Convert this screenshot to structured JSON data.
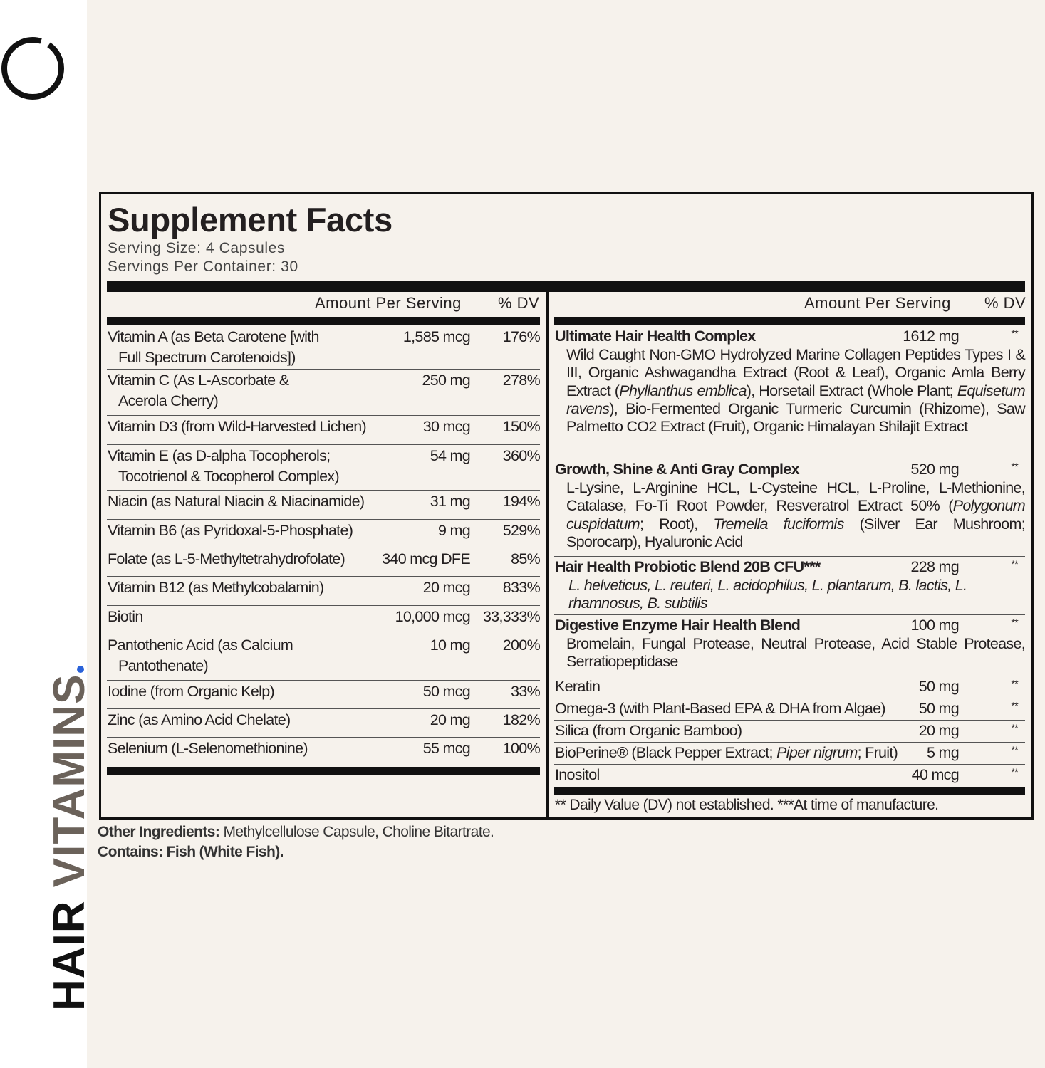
{
  "brand": {
    "word1": "HAIR",
    "word2": "VITAMINS",
    "accent_color": "#2a62d9"
  },
  "label": {
    "title": "Supplement Facts",
    "serving_size": "Serving Size: 4 Capsules",
    "servings_per_container": "Servings Per Container: 30",
    "left_header": {
      "amount": "Amount Per Serving",
      "dv": "% DV"
    },
    "right_header": {
      "amount": "Amount Per Serving",
      "dv": "% DV"
    },
    "left_rows": [
      {
        "name": "Vitamin A (as Beta Carotene [with",
        "name2": "Full Spectrum Carotenoids])",
        "amount": "1,585 mcg",
        "dv": "176%"
      },
      {
        "name": "Vitamin C (As L-Ascorbate &",
        "name2": "Acerola Cherry)",
        "amount": "250 mg",
        "dv": "278%"
      },
      {
        "name": "Vitamin D3 (from Wild-Harvested Lichen)",
        "amount": "30 mcg",
        "dv": "150%"
      },
      {
        "name": "Vitamin E (as D-alpha Tocopherols;",
        "name2": "Tocotrienol & Tocopherol Complex)",
        "amount": "54 mg",
        "dv": "360%"
      },
      {
        "name": "Niacin (as Natural Niacin & Niacinamide)",
        "amount": "31 mg",
        "dv": "194%"
      },
      {
        "name": "Vitamin B6 (as Pyridoxal-5-Phosphate)",
        "amount": "9 mg",
        "dv": "529%"
      },
      {
        "name": "Folate (as L-5-Methyltetrahydrofolate)",
        "amount": "340 mcg DFE",
        "dv": "85%"
      },
      {
        "name": "Vitamin B12 (as Methylcobalamin)",
        "amount": "20 mcg",
        "dv": "833%"
      },
      {
        "name": "Biotin",
        "amount": "10,000 mcg",
        "dv": "33,333%"
      },
      {
        "name": "Pantothenic Acid (as Calcium",
        "name2": "Pantothenate)",
        "amount": "10 mg",
        "dv": "200%"
      },
      {
        "name": "Iodine (from Organic Kelp)",
        "amount": "50 mcg",
        "dv": "33%"
      },
      {
        "name": "Zinc (as Amino Acid Chelate)",
        "amount": "20 mg",
        "dv": "182%"
      },
      {
        "name": "Selenium (L-Selenomethionine)",
        "amount": "55 mcg",
        "dv": "100%"
      }
    ],
    "right_rows": [
      {
        "name": "Ultimate Hair Health Complex",
        "bold": true,
        "amount": "1612 mg",
        "dv": "**",
        "desc": [
          {
            "t": "Wild Caught Non-GMO Hydrolyzed Marine Collagen Peptides Types I & III, Organic Ashwagandha Extract (Root & Leaf), Organic Amla Berry Extract ("
          },
          {
            "t": "Phyllanthus emblica",
            "i": true
          },
          {
            "t": "), Horsetail Extract (Whole Plant; "
          },
          {
            "t": "Equisetum ravens",
            "i": true
          },
          {
            "t": "), Bio-Fermented Organic Turmeric Curcumin (Rhizome), Saw Palmetto CO2 Extract (Fruit), Organic Himalayan Shilajit Extract"
          }
        ]
      },
      {
        "name": "Growth, Shine & Anti Gray Complex",
        "bold": true,
        "amount": "520 mg",
        "dv": "**",
        "desc": [
          {
            "t": "L-Lysine, L-Arginine HCL, L-Cysteine HCL, L-Proline, L-Methionine, Catalase, Fo-Ti Root Powder, Resveratrol Extract 50% ("
          },
          {
            "t": "Polygonum cuspidatum",
            "i": true
          },
          {
            "t": "; Root), "
          },
          {
            "t": "Tremella fuciformis",
            "i": true
          },
          {
            "t": " (Silver Ear Mushroom; Sporocarp), Hyaluronic Acid"
          }
        ]
      },
      {
        "name": "Hair Health Probiotic Blend 20B CFU***",
        "bold": true,
        "amount": "228 mg",
        "dv": "**",
        "desc": [
          {
            "t": "L. helveticus, L. reuteri, L. acidophilus, L. plantarum, B. lactis, L. rhamnosus, B. subtilis",
            "i": true
          }
        ]
      },
      {
        "name": "Digestive Enzyme Hair Health Blend",
        "bold": true,
        "amount": "100 mg",
        "dv": "**",
        "desc": [
          {
            "t": "Bromelain, Fungal Protease, Neutral Protease, Acid Stable Protease, Serratiopeptidase"
          }
        ]
      },
      {
        "name": "Keratin",
        "amount": "50 mg",
        "dv": "**"
      },
      {
        "name": "Omega-3 (with Plant-Based EPA & DHA from Algae)",
        "amount": "50 mg",
        "dv": "**"
      },
      {
        "name": "Silica (from Organic Bamboo)",
        "amount": "20 mg",
        "dv": "**"
      },
      {
        "name": "BioPerine® (Black Pepper Extract; ",
        "name_italic": "Piper nigrum",
        "name_after": "; Fruit)",
        "amount": "5 mg",
        "dv": "**"
      },
      {
        "name": "Inositol",
        "amount": "40 mcg",
        "dv": "**"
      }
    ],
    "footnote": "** Daily Value (DV) not established.   ***At time of manufacture."
  },
  "other_ingredients": {
    "label": "Other Ingredients:",
    "text": " Methylcellulose Capsule, Choline Bitartrate."
  },
  "contains": {
    "label": "Contains: Fish (White Fish)."
  }
}
